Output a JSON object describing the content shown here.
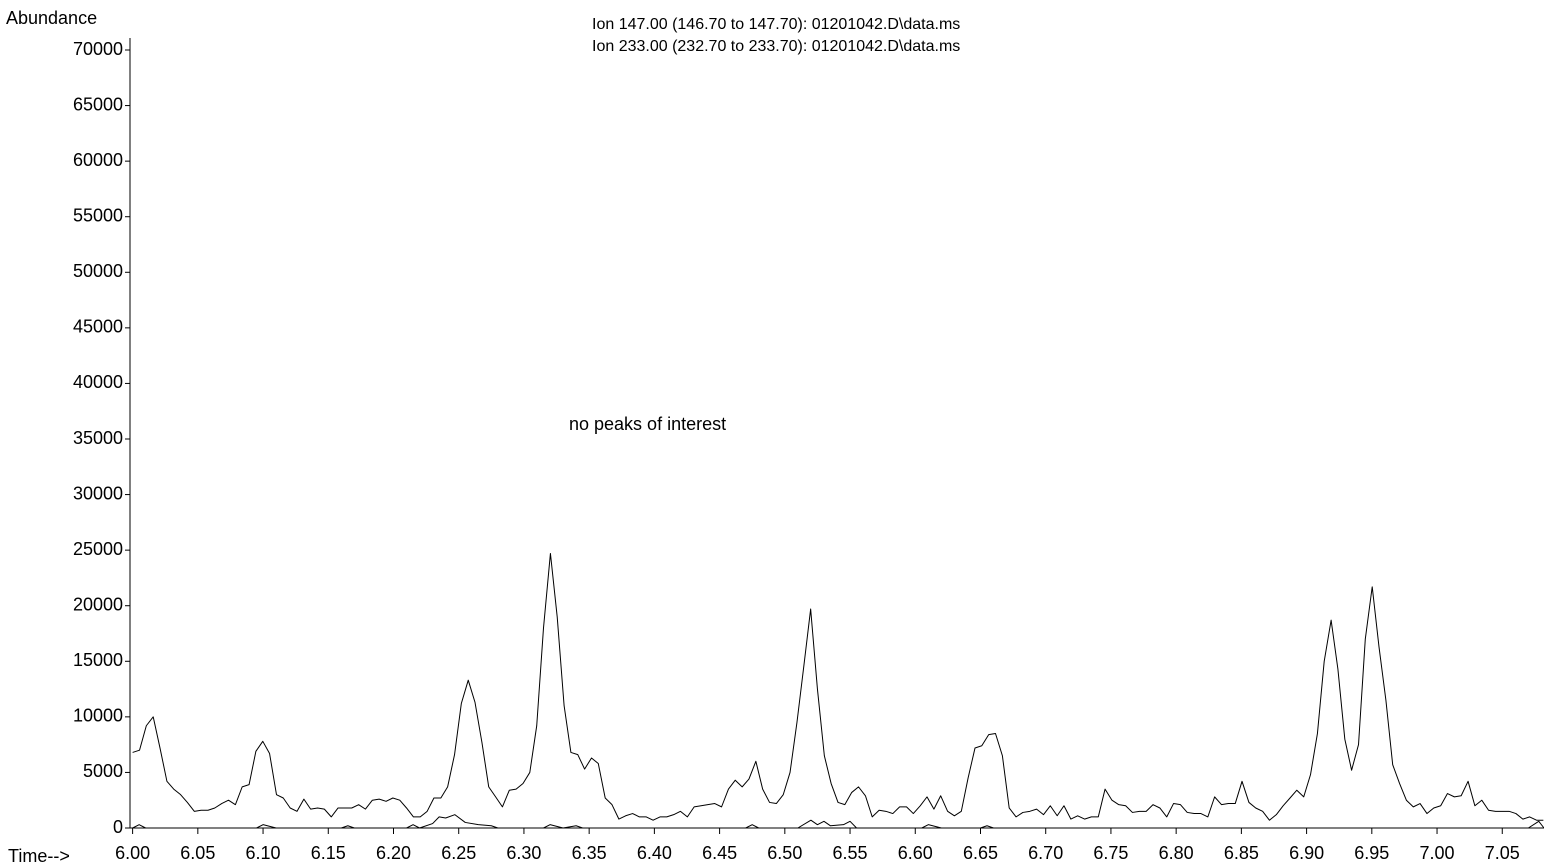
{
  "chart_data": {
    "type": "line",
    "xlabel": "Time-->",
    "ylabel": "Abundance",
    "annotation": "no peaks of interest",
    "xlim": [
      5.998,
      7.082
    ],
    "ylim": [
      0,
      70000
    ],
    "yticks": [
      0,
      5000,
      10000,
      15000,
      20000,
      25000,
      30000,
      35000,
      40000,
      45000,
      50000,
      55000,
      60000,
      65000,
      70000
    ],
    "xticks": [
      {
        "value": 6.0,
        "label": "6.00"
      },
      {
        "value": 6.05,
        "label": "6.05"
      },
      {
        "value": 6.1,
        "label": "6.10"
      },
      {
        "value": 6.15,
        "label": "6.15"
      },
      {
        "value": 6.2,
        "label": "6.20"
      },
      {
        "value": 6.25,
        "label": "6.25"
      },
      {
        "value": 6.3,
        "label": "6.30"
      },
      {
        "value": 6.35,
        "label": "6.35"
      },
      {
        "value": 6.4,
        "label": "6.40"
      },
      {
        "value": 6.45,
        "label": "6.45"
      },
      {
        "value": 6.5,
        "label": "6.50"
      },
      {
        "value": 6.55,
        "label": "6.55"
      },
      {
        "value": 6.6,
        "label": "6.60"
      },
      {
        "value": 6.65,
        "label": "6.65"
      },
      {
        "value": 6.7,
        "label": "6.70"
      },
      {
        "value": 6.75,
        "label": "6.75"
      },
      {
        "value": 6.8,
        "label": "6.80"
      },
      {
        "value": 6.85,
        "label": "6.85"
      },
      {
        "value": 6.9,
        "label": "6.90"
      },
      {
        "value": 6.95,
        "label": "6.95"
      },
      {
        "value": 7.0,
        "label": "7.00"
      },
      {
        "value": 7.05,
        "label": "7.05"
      }
    ],
    "series": [
      {
        "name": "Ion 147.00 (146.70 to 147.70): 01201042.D\\data.ms",
        "color": "#000000",
        "x": [
          6.0,
          6.0053,
          6.0105,
          6.0158,
          6.021,
          6.0263,
          6.0315,
          6.0368,
          6.042,
          6.0473,
          6.0525,
          6.0578,
          6.063,
          6.0683,
          6.0735,
          6.0788,
          6.084,
          6.0893,
          6.0945,
          6.0998,
          6.105,
          6.1103,
          6.1155,
          6.1208,
          6.126,
          6.1313,
          6.1365,
          6.1418,
          6.147,
          6.1523,
          6.1575,
          6.1628,
          6.168,
          6.1733,
          6.1785,
          6.1838,
          6.189,
          6.1943,
          6.1995,
          6.2048,
          6.21,
          6.2153,
          6.2205,
          6.2258,
          6.231,
          6.2363,
          6.2415,
          6.2468,
          6.252,
          6.2573,
          6.2625,
          6.2678,
          6.273,
          6.2783,
          6.2835,
          6.2888,
          6.294,
          6.2993,
          6.3045,
          6.3098,
          6.315,
          6.3203,
          6.3255,
          6.3308,
          6.336,
          6.3413,
          6.3465,
          6.3518,
          6.357,
          6.3623,
          6.3675,
          6.3728,
          6.378,
          6.3833,
          6.3885,
          6.3938,
          6.399,
          6.4043,
          6.4095,
          6.4148,
          6.42,
          6.4253,
          6.4305,
          6.4358,
          6.441,
          6.4463,
          6.4515,
          6.4568,
          6.462,
          6.4673,
          6.4725,
          6.4778,
          6.483,
          6.4883,
          6.4935,
          6.4988,
          6.504,
          6.5093,
          6.5145,
          6.5198,
          6.525,
          6.5303,
          6.5355,
          6.5408,
          6.546,
          6.5513,
          6.5565,
          6.5618,
          6.567,
          6.5723,
          6.5775,
          6.5828,
          6.588,
          6.5933,
          6.5985,
          6.6038,
          6.609,
          6.6143,
          6.6195,
          6.6248,
          6.63,
          6.6353,
          6.6405,
          6.6458,
          6.651,
          6.6563,
          6.6615,
          6.6668,
          6.672,
          6.6773,
          6.6825,
          6.6878,
          6.693,
          6.6983,
          6.7035,
          6.7088,
          6.714,
          6.7193,
          6.7245,
          6.7298,
          6.735,
          6.7403,
          6.7455,
          6.7508,
          6.756,
          6.7613,
          6.7665,
          6.7718,
          6.777,
          6.7823,
          6.7875,
          6.7928,
          6.798,
          6.8033,
          6.8085,
          6.8138,
          6.819,
          6.8243,
          6.8295,
          6.8348,
          6.84,
          6.8453,
          6.8505,
          6.8558,
          6.861,
          6.8663,
          6.8715,
          6.8768,
          6.882,
          6.8873,
          6.8925,
          6.8978,
          6.903,
          6.9083,
          6.9135,
          6.9188,
          6.924,
          6.9293,
          6.9345,
          6.9398,
          6.945,
          6.9503,
          6.9555,
          6.9608,
          6.966,
          6.9713,
          6.9765,
          6.9818,
          6.987,
          6.9923,
          6.9975,
          7.0028,
          7.008,
          7.0133,
          7.0185,
          7.0238,
          7.029,
          7.0343,
          7.0395,
          7.0448,
          7.05,
          7.0553,
          7.0605,
          7.0658,
          7.071,
          7.0763,
          7.0815
        ],
        "values": [
          6800,
          7000,
          9200,
          10000,
          7200,
          4200,
          3500,
          3000,
          2300,
          1500,
          1600,
          1600,
          1800,
          2200,
          2500,
          2100,
          3700,
          3900,
          6900,
          7800,
          6700,
          3000,
          2700,
          1800,
          1500,
          2600,
          1700,
          1800,
          1700,
          1000,
          1800,
          1800,
          1800,
          2100,
          1700,
          2500,
          2600,
          2400,
          2700,
          2500,
          1800,
          1000,
          1000,
          1500,
          2700,
          2700,
          3700,
          6600,
          11200,
          13300,
          11300,
          7700,
          3700,
          2800,
          1900,
          3400,
          3500,
          4000,
          5000,
          9200,
          18000,
          24700,
          19000,
          11000,
          6800,
          6600,
          5300,
          6300,
          5800,
          2700,
          2100,
          800,
          1100,
          1300,
          1000,
          1000,
          700,
          1000,
          1000,
          1200,
          1500,
          1000,
          1900,
          2000,
          2100,
          2200,
          1900,
          3500,
          4300,
          3700,
          4400,
          6000,
          3500,
          2300,
          2200,
          3000,
          5000,
          9500,
          14500,
          19700,
          12500,
          6500,
          4000,
          2300,
          2100,
          3200,
          3700,
          2900,
          1000,
          1600,
          1500,
          1300,
          1900,
          1900,
          1300,
          2000,
          2800,
          1700,
          2900,
          1500,
          1100,
          1500,
          4500,
          7200,
          7400,
          8400,
          8500,
          6500,
          1800,
          1000,
          1400,
          1500,
          1700,
          1200,
          2000,
          1100,
          2000,
          800,
          1100,
          800,
          1000,
          1000,
          3500,
          2500,
          2100,
          2000,
          1400,
          1500,
          1500,
          2100,
          1800,
          1000,
          2200,
          2100,
          1400,
          1300,
          1300,
          1000,
          2800,
          2100,
          2200,
          2200,
          4200,
          2300,
          1800,
          1500,
          700,
          1200,
          2000,
          2700,
          3400,
          2800,
          4800,
          8500,
          15000,
          18700,
          14300,
          8000,
          5200,
          7500,
          17000,
          21700,
          16300,
          11500,
          5700,
          4000,
          2500,
          1900,
          2200,
          1300,
          1800,
          2000,
          3100,
          2800,
          2900,
          4200,
          2000,
          2500,
          1600,
          1500,
          1500,
          1500,
          1300,
          800,
          1000,
          700,
          700
        ]
      },
      {
        "name": "Ion 233.00 (232.70 to 233.70): 01201042.D\\data.ms",
        "color": "#000000",
        "x": [
          6.0,
          6.005,
          6.01,
          6.095,
          6.1,
          6.11,
          6.16,
          6.165,
          6.17,
          6.21,
          6.215,
          6.22,
          6.23,
          6.235,
          6.24,
          6.247,
          6.255,
          6.265,
          6.275,
          6.28,
          6.315,
          6.32,
          6.33,
          6.34,
          6.345,
          6.47,
          6.475,
          6.48,
          6.51,
          6.52,
          6.525,
          6.53,
          6.535,
          6.545,
          6.55,
          6.555,
          6.605,
          6.61,
          6.62,
          6.65,
          6.655,
          6.66,
          7.07,
          7.078,
          7.082
        ],
        "values": [
          0,
          300,
          0,
          0,
          300,
          0,
          0,
          200,
          0,
          0,
          300,
          0,
          400,
          1000,
          900,
          1200,
          500,
          300,
          200,
          0,
          0,
          300,
          0,
          200,
          0,
          0,
          300,
          0,
          0,
          700,
          300,
          600,
          200,
          300,
          600,
          0,
          0,
          300,
          0,
          0,
          200,
          0,
          0,
          600,
          0
        ]
      }
    ]
  }
}
